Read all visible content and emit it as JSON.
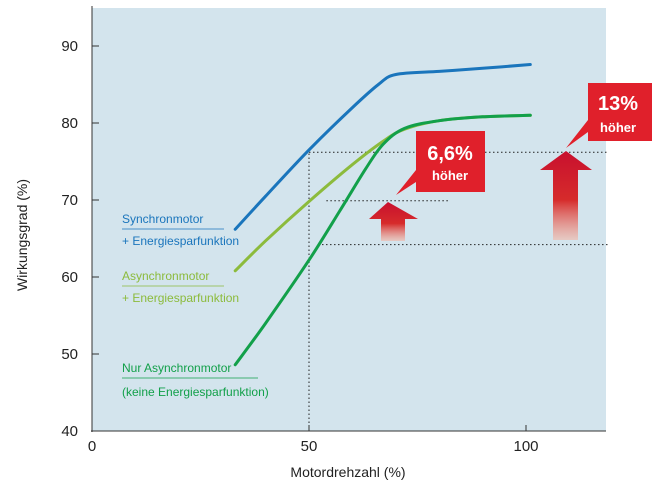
{
  "chart_data": {
    "type": "line",
    "xlabel": "Motordrehzahl (%)",
    "ylabel": "Wirkungsgrad (%)",
    "xlim": [
      0,
      120
    ],
    "ylim": [
      40,
      95
    ],
    "x_ticks": [
      "0",
      "50",
      "100"
    ],
    "y_ticks": [
      "40",
      "50",
      "60",
      "70",
      "80",
      "90"
    ],
    "grid": false,
    "background": "#d3e4ed",
    "series": [
      {
        "name_line1": "Synchronmotor",
        "name_line2": "+ Energiesparfunktion",
        "color": "#1a75bc",
        "points": [
          [
            33,
            66.2
          ],
          [
            40,
            70.5
          ],
          [
            50,
            76.5
          ],
          [
            60,
            82
          ],
          [
            66,
            85
          ],
          [
            70,
            86.3
          ],
          [
            80,
            86.7
          ],
          [
            90,
            87.1
          ],
          [
            101,
            87.6
          ]
        ]
      },
      {
        "name_line1": "Asynchronmotor",
        "name_line2": "+ Energiesparfunktion",
        "color": "#8cbb3c",
        "points": [
          [
            33,
            60.8
          ],
          [
            40,
            64.7
          ],
          [
            50,
            69.8
          ],
          [
            60,
            74.6
          ],
          [
            67,
            77.6
          ],
          [
            72,
            79.2
          ],
          [
            80,
            80.3
          ],
          [
            90,
            80.8
          ],
          [
            101,
            81
          ]
        ]
      },
      {
        "name_line1": "Nur Asynchronmotor",
        "name_line2": "(keine Energiesparfunktion)",
        "color": "#12a04a",
        "points": [
          [
            33,
            48.6
          ],
          [
            40,
            54
          ],
          [
            50,
            62.2
          ],
          [
            57,
            68.5
          ],
          [
            63,
            74
          ],
          [
            67,
            77.2
          ],
          [
            72,
            79.3
          ],
          [
            80,
            80.3
          ],
          [
            90,
            80.8
          ],
          [
            101,
            81
          ]
        ]
      }
    ],
    "reference_lines": [
      {
        "axis": "x",
        "value": 50,
        "from": 40,
        "to": 76.2
      },
      {
        "axis": "y",
        "value": 76.2,
        "from": 50,
        "to": 119
      },
      {
        "axis": "y",
        "value": 64.2,
        "from": 53,
        "to": 119
      },
      {
        "axis": "y",
        "value": 69.9,
        "from": 54,
        "to": 82
      }
    ],
    "annotations": [
      {
        "value": "6,6%",
        "sub": "höher"
      },
      {
        "value": "13%",
        "sub": "höher"
      }
    ]
  }
}
